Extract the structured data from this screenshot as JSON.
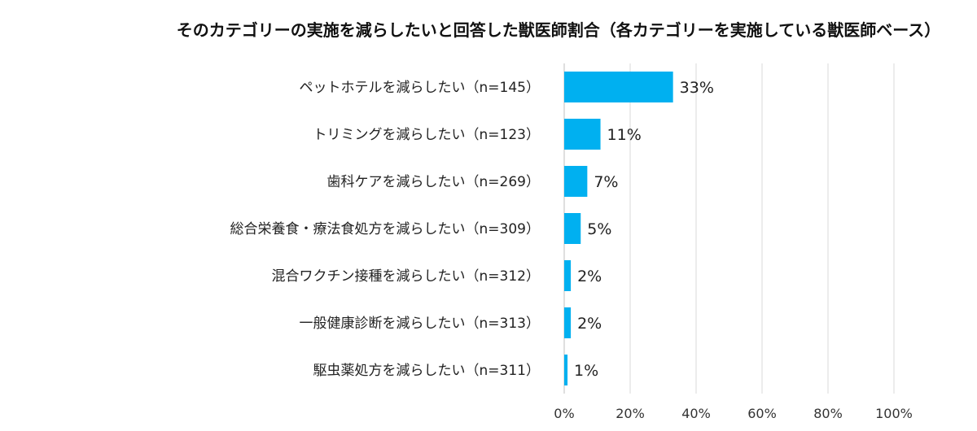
{
  "chart_data": {
    "type": "bar",
    "orientation": "horizontal",
    "title": "そのカテゴリーの実施を減らしたいと回答した獣医師割合（各カテゴリーを実施している獣医師ベース）",
    "categories": [
      "ペットホテルを減らしたい（n=145）",
      "トリミングを減らしたい（n=123）",
      "歯科ケアを減らしたい（n=269）",
      "総合栄養食・療法食処方を減らしたい（n=309）",
      "混合ワクチン接種を減らしたい（n=312）",
      "一般健康診断を減らしたい（n=313）",
      "駆虫薬処方を減らしたい（n=311）"
    ],
    "values": [
      33,
      11,
      7,
      5,
      2,
      2,
      1
    ],
    "value_labels": [
      "33%",
      "11%",
      "7%",
      "5%",
      "2%",
      "2%",
      "1%"
    ],
    "xlim": [
      0,
      100
    ],
    "x_ticks": [
      "0%",
      "20%",
      "40%",
      "60%",
      "80%",
      "100%"
    ],
    "grid": true,
    "bar_color": "#00b0f0"
  }
}
